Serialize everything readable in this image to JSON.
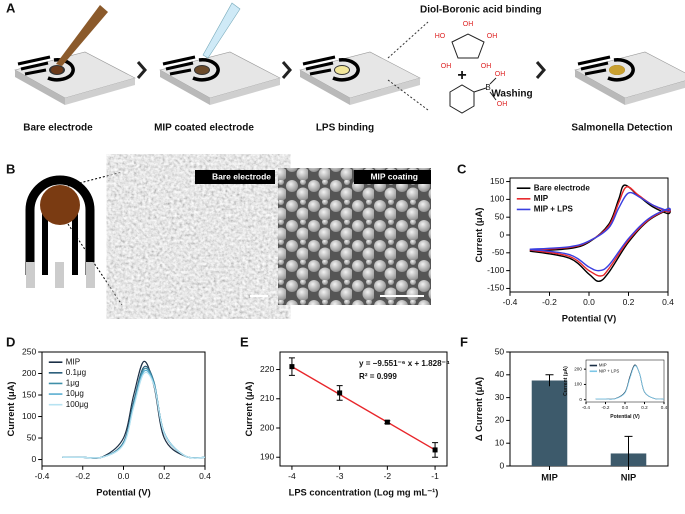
{
  "panel_labels": [
    "A",
    "B",
    "C",
    "D",
    "E",
    "F"
  ],
  "panel_a": {
    "steps": [
      "Bare electrode",
      "MIP coated electrode",
      "LPS binding",
      "Washing",
      "Salmonella Detection"
    ],
    "reaction_title": "Diol-Boronic acid binding",
    "plus": "+",
    "chem_labels": [
      "HO",
      "OH",
      "OH",
      "OH",
      "OH",
      "B",
      "OH",
      "OH"
    ]
  },
  "panel_b": {
    "images": [
      "Bare electrode",
      "MIP coating"
    ]
  },
  "chart_data": [
    {
      "type": "line",
      "xlabel": "Potential (V)",
      "ylabel": "Current (μA)",
      "xlim": [
        -0.4,
        0.4
      ],
      "xticks": [
        -0.4,
        -0.2,
        {
          "value": 0,
          "label": "0.0"
        },
        0.2,
        0.4
      ],
      "ylim": [
        -160,
        160
      ],
      "yticks": [
        -150,
        -100,
        -50,
        0,
        50,
        100,
        150
      ],
      "legend": "upper left",
      "series": [
        {
          "name": "Bare electrode",
          "color": "#000000",
          "x": [
            -0.3,
            -0.1,
            0,
            0.1,
            0.15,
            0.18,
            0.25,
            0.32,
            0.4,
            0.4,
            0.3,
            0.2,
            0.1,
            0.05,
            0,
            -0.1,
            -0.3
          ],
          "values": [
            -45,
            -38,
            -20,
            30,
            100,
            140,
            110,
            80,
            60,
            70,
            40,
            -20,
            -105,
            -130,
            -110,
            -65,
            -45
          ]
        },
        {
          "name": "MIP",
          "color": "#e8262b",
          "x": [
            -0.3,
            -0.1,
            0,
            0.1,
            0.15,
            0.19,
            0.25,
            0.32,
            0.4,
            0.4,
            0.3,
            0.2,
            0.1,
            0.06,
            0,
            -0.1,
            -0.3
          ],
          "values": [
            -42,
            -35,
            -18,
            25,
            90,
            135,
            112,
            85,
            65,
            72,
            42,
            -15,
            -95,
            -115,
            -100,
            -60,
            -42
          ]
        },
        {
          "name": "MIP + LPS",
          "color": "#3a3fe0",
          "x": [
            -0.3,
            -0.1,
            0,
            0.1,
            0.15,
            0.2,
            0.26,
            0.32,
            0.4,
            0.4,
            0.3,
            0.2,
            0.1,
            0.05,
            0,
            -0.1,
            -0.3
          ],
          "values": [
            -40,
            -33,
            -17,
            20,
            75,
            118,
            105,
            85,
            68,
            74,
            45,
            -10,
            -85,
            -100,
            -90,
            -55,
            -40
          ]
        }
      ]
    },
    {
      "type": "line",
      "xlabel": "Potential (V)",
      "ylabel": "Current (μA)",
      "xlim": [
        -0.4,
        0.4
      ],
      "xticks": [
        -0.4,
        -0.2,
        {
          "value": 0,
          "label": "0.0"
        },
        0.2,
        0.4
      ],
      "ylim": [
        -15,
        250
      ],
      "yticks": [
        0,
        50,
        100,
        150,
        200,
        250
      ],
      "legend": "upper left",
      "x": [
        -0.3,
        -0.2,
        -0.1,
        0,
        0.05,
        0.1,
        0.15,
        0.2,
        0.3,
        0.4
      ],
      "series": [
        {
          "name": "MIP",
          "color": "#1b2f45",
          "values": [
            5,
            5,
            7,
            50,
            150,
            228,
            170,
            50,
            8,
            5
          ]
        },
        {
          "name": "0.1μg",
          "color": "#2a5d7a",
          "values": [
            5,
            5,
            6,
            40,
            135,
            215,
            180,
            60,
            9,
            5
          ]
        },
        {
          "name": "1μg",
          "color": "#3f8fa8",
          "values": [
            5,
            5,
            6,
            38,
            130,
            210,
            178,
            62,
            9,
            5
          ]
        },
        {
          "name": "10μg",
          "color": "#5aaed0",
          "values": [
            5,
            5,
            6,
            36,
            125,
            205,
            175,
            62,
            9,
            5
          ]
        },
        {
          "name": "100μg",
          "color": "#b7e3f2",
          "values": [
            5,
            5,
            6,
            35,
            122,
            200,
            172,
            60,
            9,
            5
          ]
        }
      ]
    },
    {
      "type": "scatter",
      "xlabel": "LPS concentration (Log mg mL⁻¹)",
      "ylabel": "Current (μA)",
      "xlim": [
        -4.25,
        -0.75
      ],
      "xticks": [
        -4,
        -3,
        -2,
        -1
      ],
      "ylim": [
        187,
        226
      ],
      "yticks": [
        190,
        200,
        210,
        220
      ],
      "annotations": [
        "y = −9.551⁻⁶ x + 1.828⁻⁴",
        "R² = 0.999"
      ],
      "series": [
        {
          "color": "#000000",
          "x": [
            -4,
            -3,
            -2,
            -1
          ],
          "values": [
            221,
            212,
            202,
            192.5
          ],
          "errors": [
            3,
            2.5,
            0.5,
            2.5
          ]
        }
      ],
      "fit": {
        "color": "#e8262b",
        "x": [
          -4,
          -1
        ],
        "values": [
          221,
          192.5
        ]
      }
    },
    {
      "type": "bar",
      "ylabel": "Δ Current (μA)",
      "categories": [
        "MIP",
        "NIP"
      ],
      "values": [
        37.5,
        5.5
      ],
      "errors": [
        2.5,
        7.5
      ],
      "color": "#3d5a6b",
      "ylim": [
        0,
        50
      ],
      "yticks": [
        0,
        10,
        20,
        30,
        40,
        50
      ]
    },
    {
      "type": "line",
      "xlabel": "Potential (V)",
      "ylabel": "Current (μA)",
      "xlim": [
        -0.4,
        0.4
      ],
      "xticks": [
        -0.4,
        -0.2,
        {
          "value": 0,
          "label": "0.0"
        },
        0.2,
        0.4
      ],
      "ylim": [
        -15,
        260
      ],
      "yticks": [
        0,
        100,
        200
      ],
      "legend": "upper left",
      "x": [
        -0.3,
        -0.2,
        -0.1,
        0,
        0.05,
        0.1,
        0.15,
        0.2,
        0.3,
        0.4
      ],
      "series": [
        {
          "name": "MIP",
          "color": "#1b2f45",
          "values": [
            5,
            5,
            7,
            50,
            150,
            228,
            170,
            50,
            8,
            5
          ]
        },
        {
          "name": "NIP + LPS",
          "color": "#7cc6e6",
          "values": [
            5,
            5,
            6,
            45,
            140,
            222,
            172,
            52,
            8,
            5
          ]
        }
      ]
    }
  ]
}
